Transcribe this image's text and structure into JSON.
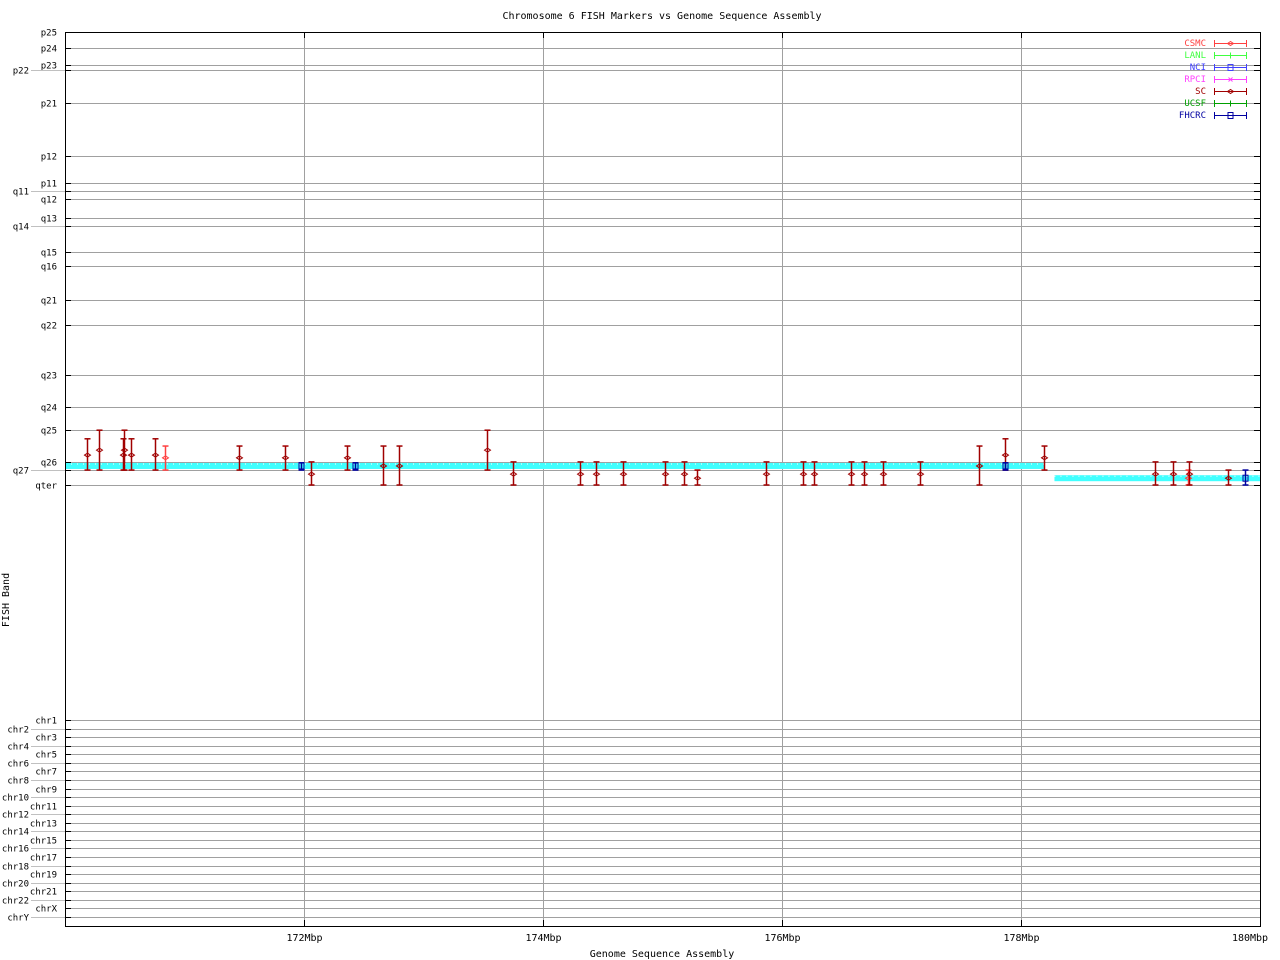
{
  "chart_data": {
    "type": "scatter",
    "title": "Chromosome 6 FISH Markers vs Genome Sequence Assembly",
    "xlabel": "Genome Sequence Assembly",
    "ylabel": "FISH Band",
    "xlim": [
      170,
      180
    ],
    "x_ticks": [
      {
        "value": 172,
        "label": "172Mbp"
      },
      {
        "value": 174,
        "label": "174Mbp"
      },
      {
        "value": 176,
        "label": "176Mbp"
      },
      {
        "value": 178,
        "label": "178Mbp"
      },
      {
        "value": 180,
        "label": "180Mbp"
      }
    ],
    "y_scale_note": "band position along chromosome 6, pter=0 to qter=1",
    "y_ticks": [
      {
        "label": "p25",
        "value": 0
      },
      {
        "label": "p24",
        "value": 0.035
      },
      {
        "label": "p23",
        "value": 0.073
      },
      {
        "label": "p22",
        "value": 0.084
      },
      {
        "label": "p21",
        "value": 0.157
      },
      {
        "label": "p12",
        "value": 0.274
      },
      {
        "label": "p11",
        "value": 0.333
      },
      {
        "label": "q11",
        "value": 0.351
      },
      {
        "label": "q12",
        "value": 0.369
      },
      {
        "label": "q13",
        "value": 0.411
      },
      {
        "label": "q14",
        "value": 0.428
      },
      {
        "label": "q15",
        "value": 0.486
      },
      {
        "label": "q16",
        "value": 0.517
      },
      {
        "label": "q21",
        "value": 0.592
      },
      {
        "label": "q22",
        "value": 0.647
      },
      {
        "label": "q23",
        "value": 0.757
      },
      {
        "label": "q24",
        "value": 0.828
      },
      {
        "label": "q25",
        "value": 0.879
      },
      {
        "label": "q26",
        "value": 0.949
      },
      {
        "label": "q27",
        "value": 0.967
      },
      {
        "label": "qter",
        "value": 1
      }
    ],
    "other_chromosomes": [
      "chr1",
      "chr2",
      "chr3",
      "chr4",
      "chr5",
      "chr6",
      "chr7",
      "chr8",
      "chr9",
      "chr10",
      "chr11",
      "chr12",
      "chr13",
      "chr14",
      "chr15",
      "chr16",
      "chr17",
      "chr18",
      "chr19",
      "chr20",
      "chr21",
      "chr22",
      "chrX",
      "chrY"
    ],
    "grid": true,
    "legend_position": "top-right",
    "legend": [
      {
        "name": "CSMC",
        "color": "#ff4040",
        "marker": "diamond"
      },
      {
        "name": "LANL",
        "color": "#40ff40",
        "marker": "tick"
      },
      {
        "name": "NCI",
        "color": "#4040ff",
        "marker": "square"
      },
      {
        "name": "RPCI",
        "color": "#ff40ff",
        "marker": "cross"
      },
      {
        "name": "SC",
        "color": "#a00000",
        "marker": "diamond"
      },
      {
        "name": "UCSF",
        "color": "#00a000",
        "marker": "tick"
      },
      {
        "name": "FHCRC",
        "color": "#0000a0",
        "marker": "square"
      }
    ],
    "assembly_color": "#40ffff",
    "assembly_segments": [
      {
        "x_start": 170.0,
        "x_end": 178.2,
        "y": 0.958
      },
      {
        "x_start": 178.28,
        "x_end": 180.0,
        "y": 0.985
      }
    ],
    "points": [
      {
        "lab": "SC",
        "x": 170.181,
        "y": 0.934,
        "y_low": 0.898,
        "y_high": 0.967
      },
      {
        "lab": "SC",
        "x": 170.286,
        "y": 0.923,
        "y_low": 0.879,
        "y_high": 0.967
      },
      {
        "lab": "SC",
        "x": 170.487,
        "y": 0.934,
        "y_low": 0.898,
        "y_high": 0.967
      },
      {
        "lab": "SC",
        "x": 170.495,
        "y": 0.923,
        "y_low": 0.879,
        "y_high": 0.967
      },
      {
        "lab": "SC",
        "x": 170.551,
        "y": 0.934,
        "y_low": 0.898,
        "y_high": 0.967
      },
      {
        "lab": "SC",
        "x": 170.754,
        "y": 0.934,
        "y_low": 0.898,
        "y_high": 0.967
      },
      {
        "lab": "CSMC",
        "x": 170.838,
        "y": 0.94,
        "y_low": 0.914,
        "y_high": 0.967
      },
      {
        "lab": "SC",
        "x": 171.456,
        "y": 0.94,
        "y_low": 0.914,
        "y_high": 0.967
      },
      {
        "lab": "SC",
        "x": 171.84,
        "y": 0.94,
        "y_low": 0.914,
        "y_high": 0.967
      },
      {
        "lab": "FHCRC",
        "x": 171.977,
        "y": 0.958,
        "y_low": 0.951,
        "y_high": 0.967
      },
      {
        "lab": "SC",
        "x": 172.06,
        "y": 0.976,
        "y_low": 0.949,
        "y_high": 1.0
      },
      {
        "lab": "SC",
        "x": 172.357,
        "y": 0.94,
        "y_low": 0.914,
        "y_high": 0.967
      },
      {
        "lab": "FHCRC",
        "x": 172.424,
        "y": 0.958,
        "y_low": 0.951,
        "y_high": 0.967
      },
      {
        "lab": "SC",
        "x": 172.658,
        "y": 0.958,
        "y_low": 0.914,
        "y_high": 1.0
      },
      {
        "lab": "SC",
        "x": 172.792,
        "y": 0.958,
        "y_low": 0.914,
        "y_high": 1.0
      },
      {
        "lab": "SC",
        "x": 173.53,
        "y": 0.923,
        "y_low": 0.879,
        "y_high": 0.967
      },
      {
        "lab": "SC",
        "x": 173.747,
        "y": 0.976,
        "y_low": 0.949,
        "y_high": 1.0
      },
      {
        "lab": "SC",
        "x": 174.311,
        "y": 0.976,
        "y_low": 0.949,
        "y_high": 1.0
      },
      {
        "lab": "SC",
        "x": 174.445,
        "y": 0.976,
        "y_low": 0.949,
        "y_high": 1.0
      },
      {
        "lab": "SC",
        "x": 174.668,
        "y": 0.976,
        "y_low": 0.949,
        "y_high": 1.0
      },
      {
        "lab": "SC",
        "x": 175.021,
        "y": 0.976,
        "y_low": 0.949,
        "y_high": 1.0
      },
      {
        "lab": "SC",
        "x": 175.18,
        "y": 0.976,
        "y_low": 0.949,
        "y_high": 1.0
      },
      {
        "lab": "SC",
        "x": 175.289,
        "y": 0.985,
        "y_low": 0.967,
        "y_high": 1.0
      },
      {
        "lab": "SC",
        "x": 175.865,
        "y": 0.976,
        "y_low": 0.949,
        "y_high": 1.0
      },
      {
        "lab": "SC",
        "x": 176.174,
        "y": 0.976,
        "y_low": 0.949,
        "y_high": 1.0
      },
      {
        "lab": "SC",
        "x": 176.266,
        "y": 0.976,
        "y_low": 0.949,
        "y_high": 1.0
      },
      {
        "lab": "SC",
        "x": 176.575,
        "y": 0.976,
        "y_low": 0.949,
        "y_high": 1.0
      },
      {
        "lab": "SC",
        "x": 176.683,
        "y": 0.976,
        "y_low": 0.949,
        "y_high": 1.0
      },
      {
        "lab": "SC",
        "x": 176.842,
        "y": 0.976,
        "y_low": 0.949,
        "y_high": 1.0
      },
      {
        "lab": "SC",
        "x": 177.154,
        "y": 0.976,
        "y_low": 0.949,
        "y_high": 1.0
      },
      {
        "lab": "SC",
        "x": 177.652,
        "y": 0.958,
        "y_low": 0.914,
        "y_high": 1.0
      },
      {
        "lab": "SC",
        "x": 177.864,
        "y": 0.934,
        "y_low": 0.898,
        "y_high": 0.967
      },
      {
        "lab": "FHCRC",
        "x": 177.869,
        "y": 0.958,
        "y_low": 0.951,
        "y_high": 0.967
      },
      {
        "lab": "SC",
        "x": 178.195,
        "y": 0.94,
        "y_low": 0.914,
        "y_high": 0.967
      },
      {
        "lab": "SC",
        "x": 179.121,
        "y": 0.976,
        "y_low": 0.949,
        "y_high": 1.0
      },
      {
        "lab": "SC",
        "x": 179.272,
        "y": 0.976,
        "y_low": 0.949,
        "y_high": 1.0
      },
      {
        "lab": "CSMC",
        "x": 179.395,
        "y": 0.985,
        "y_low": 0.967,
        "y_high": 1.0
      },
      {
        "lab": "SC",
        "x": 179.403,
        "y": 0.976,
        "y_low": 0.949,
        "y_high": 1.0
      },
      {
        "lab": "SC",
        "x": 179.729,
        "y": 0.985,
        "y_low": 0.967,
        "y_high": 1.0
      },
      {
        "lab": "FHCRC",
        "x": 179.873,
        "y": 0.985,
        "y_low": 0.967,
        "y_high": 1.0
      }
    ]
  }
}
